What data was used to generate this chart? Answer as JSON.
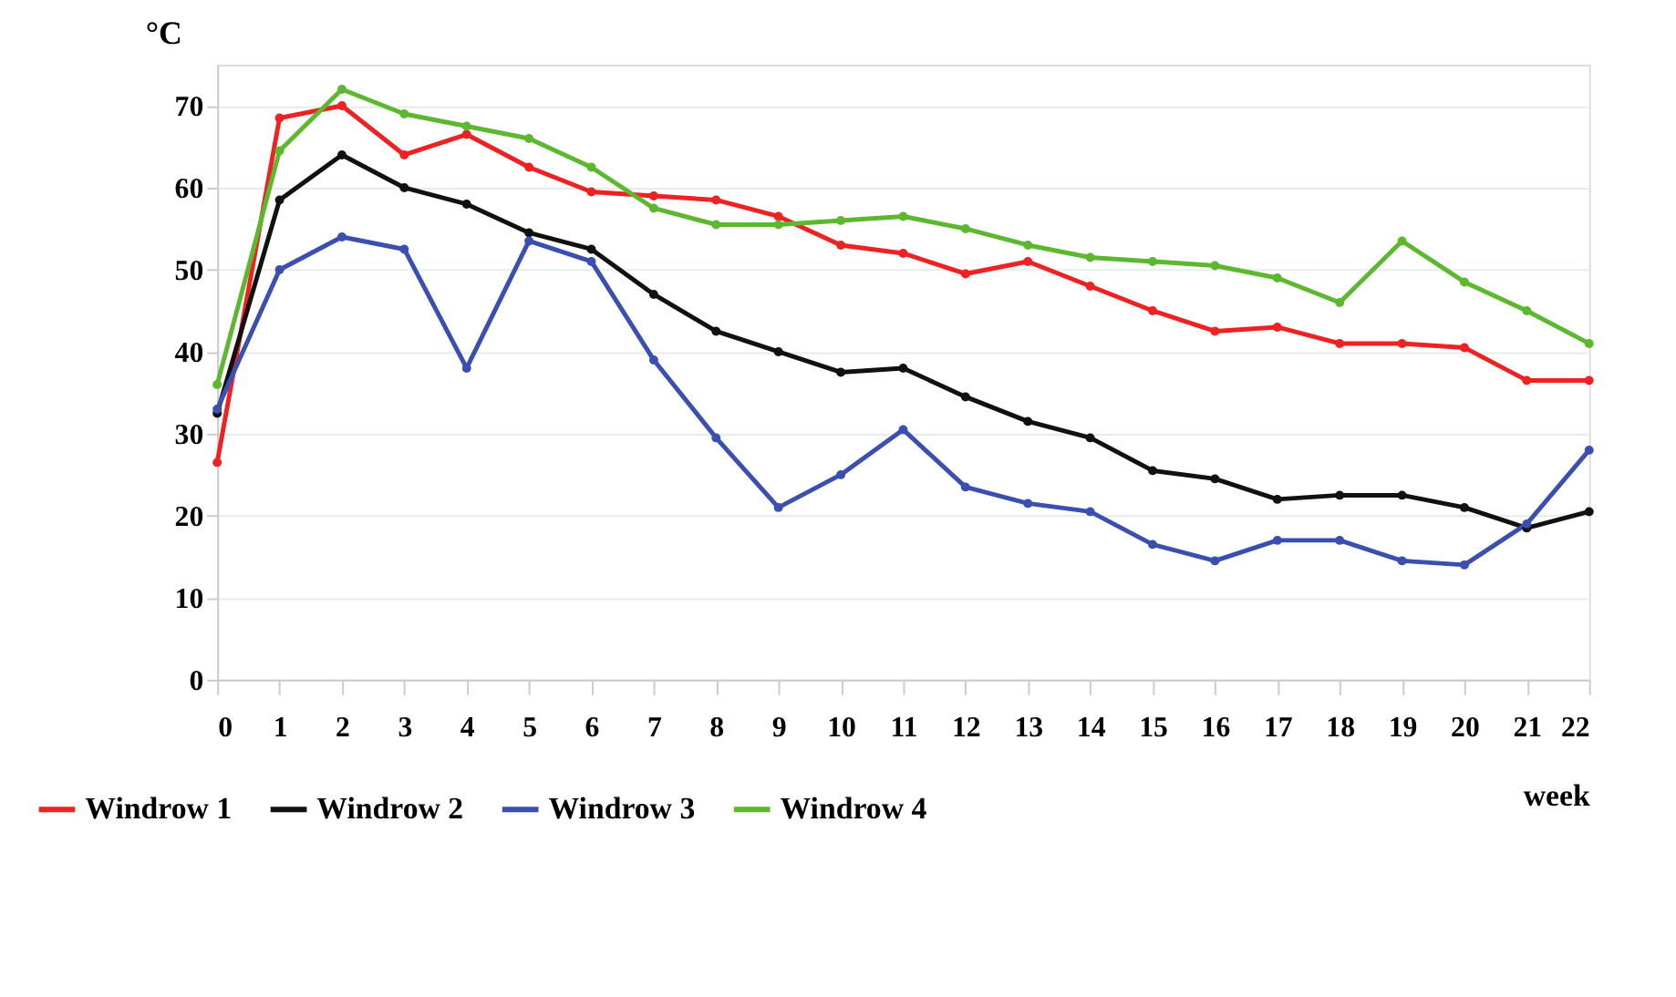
{
  "chart_data": {
    "type": "line",
    "ylabel": "°C",
    "xlabel": "week",
    "x": [
      0,
      1,
      2,
      3,
      4,
      5,
      6,
      7,
      8,
      9,
      10,
      11,
      12,
      13,
      14,
      15,
      16,
      17,
      18,
      19,
      20,
      21,
      22
    ],
    "series": [
      {
        "name": "Windrow 1",
        "color": "#ee2222",
        "values": [
          26.5,
          68.5,
          70,
          64,
          66.5,
          62.5,
          59.5,
          59,
          58.5,
          56.5,
          53,
          52,
          49.5,
          51,
          48,
          45,
          42.5,
          43,
          41,
          41,
          40.5,
          36.5,
          36.5
        ]
      },
      {
        "name": "Windrow 2",
        "color": "#111111",
        "values": [
          32.5,
          58.5,
          64,
          60,
          58,
          54.5,
          52.5,
          47,
          42.5,
          40,
          37.5,
          38,
          34.5,
          31.5,
          29.5,
          25.5,
          24.5,
          22,
          22.5,
          22.5,
          21,
          18.5,
          20.5
        ]
      },
      {
        "name": "Windrow 3",
        "color": "#3a4fb0",
        "values": [
          33,
          50,
          54,
          52.5,
          38,
          53.5,
          51,
          39,
          29.5,
          21,
          25,
          30.5,
          23.5,
          21.5,
          20.5,
          16.5,
          14.5,
          17,
          17,
          14.5,
          14,
          19,
          28
        ]
      },
      {
        "name": "Windrow 4",
        "color": "#5cb82e",
        "values": [
          36,
          64.5,
          72,
          69,
          67.5,
          66,
          62.5,
          57.5,
          55.5,
          55.5,
          56,
          56.5,
          55,
          53,
          51.5,
          51,
          50.5,
          49,
          46,
          53.5,
          48.5,
          45,
          41
        ]
      }
    ],
    "xlim": [
      0,
      22
    ],
    "xticks": [
      0,
      1,
      2,
      3,
      4,
      5,
      6,
      7,
      8,
      9,
      10,
      11,
      12,
      13,
      14,
      15,
      16,
      17,
      18,
      19,
      20,
      21,
      22
    ],
    "ylim": [
      0,
      75
    ],
    "yticks": [
      0,
      10,
      20,
      30,
      40,
      50,
      60,
      70
    ],
    "grid": "y",
    "legend": "bottom left",
    "marker": "circle",
    "line_style": "solid"
  }
}
